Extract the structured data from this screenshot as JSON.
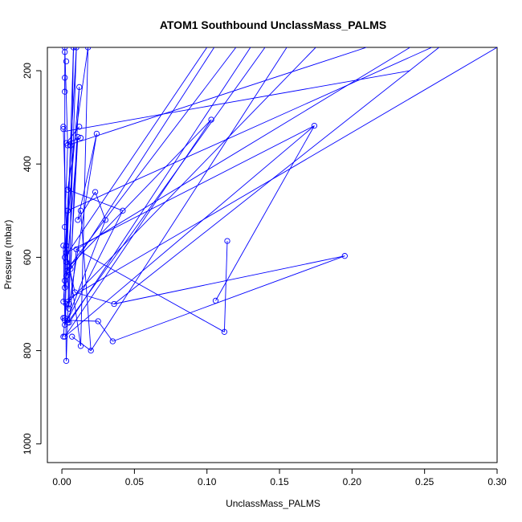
{
  "chart_data": {
    "type": "line",
    "title": "ATOM1 Southbound UnclassMass_PALMS",
    "xlabel": "UnclassMass_PALMS",
    "ylabel": "Pressure (mbar)",
    "xlim": [
      -0.01,
      0.3
    ],
    "ylim": [
      1040,
      150
    ],
    "y_reversed": true,
    "x_ticks": [
      0.0,
      0.05,
      0.1,
      0.15,
      0.2,
      0.25,
      0.3
    ],
    "x_tick_labels": [
      "0.00",
      "0.05",
      "0.10",
      "0.15",
      "0.20",
      "0.25",
      "0.30"
    ],
    "y_ticks": [
      200,
      400,
      600,
      800,
      1000
    ],
    "y_tick_labels": [
      "200",
      "400",
      "600",
      "800",
      "1000"
    ],
    "grid": false,
    "series": [
      {
        "color": "#0000ff",
        "marker": "open-circle",
        "points": [
          [
            0.002,
            150
          ],
          [
            0.003,
            180
          ],
          [
            0.001,
            320
          ],
          [
            0.004,
            360
          ],
          [
            0.002,
            535
          ],
          [
            0.001,
            575
          ],
          [
            0.003,
            610
          ],
          [
            0.002,
            650
          ],
          [
            0.001,
            695
          ],
          [
            0.004,
            740
          ],
          [
            0.002,
            770
          ],
          [
            0.003,
            822
          ],
          [
            0.01,
            150
          ],
          [
            0.002,
            215
          ],
          [
            0.012,
            235
          ],
          [
            0.001,
            325
          ],
          [
            0.011,
            342
          ],
          [
            0.006,
            360
          ],
          [
            0.004,
            455
          ],
          [
            0.013,
            500
          ],
          [
            0.002,
            600
          ],
          [
            0.006,
            625
          ],
          [
            0.003,
            640
          ],
          [
            0.005,
            700
          ],
          [
            0.007,
            770
          ],
          [
            0.008,
            150
          ],
          [
            0.002,
            245
          ],
          [
            0.024,
            335
          ],
          [
            0.011,
            520
          ],
          [
            0.023,
            460
          ],
          [
            0.03,
            520
          ],
          [
            0.042,
            500
          ],
          [
            0.103,
            305
          ],
          [
            0.005,
            620
          ],
          [
            0.009,
            675
          ],
          [
            0.036,
            700
          ],
          [
            0.013,
            790
          ],
          [
            0.02,
            800
          ],
          [
            0.018,
            150
          ],
          [
            0.004,
            500
          ],
          [
            0.174,
            318
          ],
          [
            0.003,
            590
          ],
          [
            0.025,
            737
          ],
          [
            0.002,
            735
          ],
          [
            0.005,
            740
          ],
          [
            0.01,
            583
          ],
          [
            0.001,
            730
          ],
          [
            0.035,
            780
          ],
          [
            0.195,
            597
          ],
          [
            0.106,
            693
          ],
          [
            0.114,
            565
          ],
          [
            0.112,
            760
          ],
          [
            0.003,
            575
          ],
          [
            0.003,
            700
          ],
          [
            0.001,
            770
          ],
          [
            0.005,
            710
          ],
          [
            0.002,
            160
          ],
          [
            0.012,
            320
          ],
          [
            0.003,
            355
          ],
          [
            0.013,
            344
          ],
          [
            0.004,
            628
          ],
          [
            0.002,
            665
          ],
          [
            0.002,
            745
          ],
          [
            0.002,
            730
          ]
        ],
        "segments": [
          [
            [
              0.002,
              150
            ],
            [
              0.004,
              360
            ]
          ],
          [
            [
              0.004,
              360
            ],
            [
              0.002,
              535
            ]
          ],
          [
            [
              0.002,
              535
            ],
            [
              0.003,
              822
            ]
          ],
          [
            [
              0.003,
              822
            ],
            [
              0.01,
              150
            ]
          ],
          [
            [
              0.01,
              150
            ],
            [
              0.002,
              600
            ]
          ],
          [
            [
              0.002,
              600
            ],
            [
              0.012,
              235
            ]
          ],
          [
            [
              0.012,
              235
            ],
            [
              0.006,
              625
            ]
          ],
          [
            [
              0.006,
              625
            ],
            [
              0.011,
              342
            ]
          ],
          [
            [
              0.011,
              342
            ],
            [
              0.003,
              640
            ]
          ],
          [
            [
              0.003,
              640
            ],
            [
              0.008,
              150
            ]
          ],
          [
            [
              0.008,
              150
            ],
            [
              0.005,
              700
            ]
          ],
          [
            [
              0.005,
              700
            ],
            [
              0.024,
              335
            ]
          ],
          [
            [
              0.024,
              335
            ],
            [
              0.011,
              520
            ]
          ],
          [
            [
              0.011,
              520
            ],
            [
              0.023,
              460
            ]
          ],
          [
            [
              0.023,
              460
            ],
            [
              0.03,
              520
            ]
          ],
          [
            [
              0.03,
              520
            ],
            [
              0.003,
              740
            ]
          ],
          [
            [
              0.003,
              740
            ],
            [
              0.042,
              500
            ]
          ],
          [
            [
              0.042,
              500
            ],
            [
              0.004,
              455
            ]
          ],
          [
            [
              0.004,
              455
            ],
            [
              0.018,
              150
            ]
          ],
          [
            [
              0.018,
              150
            ],
            [
              0.013,
              790
            ]
          ],
          [
            [
              0.013,
              790
            ],
            [
              0.005,
              620
            ]
          ],
          [
            [
              0.005,
              620
            ],
            [
              0.103,
              305
            ]
          ],
          [
            [
              0.103,
              305
            ],
            [
              0.002,
              770
            ]
          ],
          [
            [
              0.002,
              770
            ],
            [
              0.174,
              318
            ]
          ],
          [
            [
              0.174,
              318
            ],
            [
              0.003,
              590
            ]
          ],
          [
            [
              0.003,
              590
            ],
            [
              0.009,
              675
            ]
          ],
          [
            [
              0.009,
              675
            ],
            [
              0.036,
              700
            ]
          ],
          [
            [
              0.036,
              700
            ],
            [
              0.195,
              597
            ]
          ],
          [
            [
              0.195,
              597
            ],
            [
              0.035,
              780
            ]
          ],
          [
            [
              0.035,
              780
            ],
            [
              0.025,
              737
            ]
          ],
          [
            [
              0.025,
              737
            ],
            [
              0.002,
              735
            ]
          ],
          [
            [
              0.002,
              735
            ],
            [
              0.005,
              740
            ]
          ],
          [
            [
              0.005,
              740
            ],
            [
              0.01,
              583
            ]
          ],
          [
            [
              0.01,
              583
            ],
            [
              0.112,
              760
            ]
          ],
          [
            [
              0.112,
              760
            ],
            [
              0.114,
              565
            ]
          ],
          [
            [
              0.106,
              693
            ],
            [
              0.174,
              318
            ]
          ],
          [
            [
              0.002,
              215
            ],
            [
              0.002,
              245
            ]
          ],
          [
            [
              0.012,
              320
            ],
            [
              0.003,
              355
            ]
          ],
          [
            [
              0.003,
              355
            ],
            [
              0.013,
              344
            ]
          ],
          [
            [
              0.004,
              628
            ],
            [
              0.001,
              325
            ]
          ],
          [
            [
              0.002,
              665
            ],
            [
              0.002,
              160
            ]
          ],
          [
            [
              0.002,
              745
            ],
            [
              0.006,
              360
            ]
          ],
          [
            [
              0.013,
              500
            ],
            [
              0.02,
              800
            ]
          ],
          [
            [
              0.02,
              800
            ],
            [
              0.007,
              770
            ]
          ],
          [
            [
              0.001,
              575
            ],
            [
              0.002,
              730
            ]
          ],
          [
            [
              0.003,
              575
            ],
            [
              0.005,
              710
            ]
          ],
          [
            [
              0.003,
              700
            ],
            [
              0.001,
              770
            ]
          ],
          [
            [
              0.001,
              730
            ],
            [
              0.004,
              740
            ]
          ],
          [
            [
              0.004,
              500
            ],
            [
              0.002,
              650
            ]
          ],
          [
            [
              0.002,
              650
            ],
            [
              0.001,
              695
            ]
          ],
          [
            [
              0.002,
              600
            ],
            [
              0.1,
              150
            ]
          ],
          [
            [
              0.005,
              620
            ],
            [
              0.12,
              150
            ]
          ],
          [
            [
              0.004,
              740
            ],
            [
              0.14,
              150
            ]
          ],
          [
            [
              0.003,
              700
            ],
            [
              0.175,
              150
            ]
          ],
          [
            [
              0.004,
              360
            ],
            [
              0.21,
              150
            ]
          ],
          [
            [
              0.01,
              583
            ],
            [
              0.24,
              150
            ]
          ],
          [
            [
              0.036,
              700
            ],
            [
              0.26,
              150
            ]
          ],
          [
            [
              0.001,
              695
            ],
            [
              0.3,
              150
            ]
          ],
          [
            [
              0.004,
              500
            ],
            [
              0.255,
              150
            ]
          ],
          [
            [
              0.005,
              740
            ],
            [
              0.13,
              150
            ]
          ],
          [
            [
              0.003,
              640
            ],
            [
              0.105,
              150
            ]
          ],
          [
            [
              0.002,
              330
            ],
            [
              0.24,
              200
            ]
          ],
          [
            [
              0.02,
              800
            ],
            [
              0.155,
              150
            ]
          ]
        ]
      }
    ]
  }
}
